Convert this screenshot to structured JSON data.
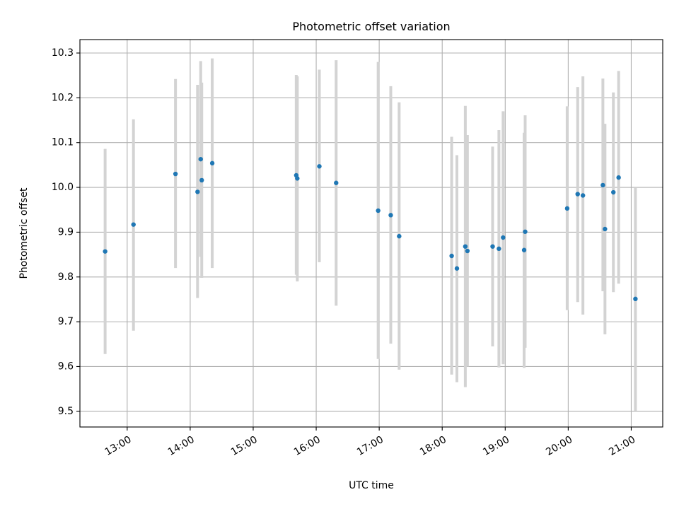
{
  "chart_data": {
    "type": "scatter",
    "title": "Photometric offset variation",
    "xlabel": "UTC time",
    "ylabel": "Photometric offset",
    "x_ticks": [
      "13:00",
      "14:00",
      "15:00",
      "16:00",
      "17:00",
      "18:00",
      "19:00",
      "20:00",
      "21:00"
    ],
    "y_ticks": [
      "9.5",
      "9.6",
      "9.7",
      "9.8",
      "9.9",
      "10.0",
      "10.1",
      "10.2",
      "10.3"
    ],
    "xlim": [
      "12:15",
      "21:30"
    ],
    "ylim": [
      9.465,
      10.33
    ],
    "grid": true,
    "points": [
      {
        "x": "12:39",
        "y": 9.857,
        "low": 9.628,
        "high": 10.086
      },
      {
        "x": "13:06",
        "y": 9.917,
        "low": 9.68,
        "high": 10.152
      },
      {
        "x": "13:46",
        "y": 10.03,
        "low": 9.82,
        "high": 10.242
      },
      {
        "x": "14:07",
        "y": 9.99,
        "low": 9.753,
        "high": 10.229
      },
      {
        "x": "14:10",
        "y": 10.063,
        "low": 9.845,
        "high": 10.282
      },
      {
        "x": "14:11",
        "y": 10.016,
        "low": 9.798,
        "high": 10.234
      },
      {
        "x": "14:21",
        "y": 10.054,
        "low": 9.82,
        "high": 10.288
      },
      {
        "x": "15:41",
        "y": 10.027,
        "low": 9.805,
        "high": 10.251
      },
      {
        "x": "15:42",
        "y": 10.02,
        "low": 9.79,
        "high": 10.248
      },
      {
        "x": "16:03",
        "y": 10.047,
        "low": 9.833,
        "high": 10.263
      },
      {
        "x": "16:19",
        "y": 10.01,
        "low": 9.736,
        "high": 10.284
      },
      {
        "x": "16:59",
        "y": 9.948,
        "low": 9.617,
        "high": 10.28
      },
      {
        "x": "17:11",
        "y": 9.938,
        "low": 9.651,
        "high": 10.226
      },
      {
        "x": "17:19",
        "y": 9.891,
        "low": 9.593,
        "high": 10.19
      },
      {
        "x": "18:09",
        "y": 9.847,
        "low": 9.582,
        "high": 10.113
      },
      {
        "x": "18:14",
        "y": 9.819,
        "low": 9.565,
        "high": 10.072
      },
      {
        "x": "18:22",
        "y": 9.868,
        "low": 9.554,
        "high": 10.182
      },
      {
        "x": "18:24",
        "y": 9.858,
        "low": 9.6,
        "high": 10.117
      },
      {
        "x": "18:48",
        "y": 9.868,
        "low": 9.645,
        "high": 10.091
      },
      {
        "x": "18:54",
        "y": 9.863,
        "low": 9.598,
        "high": 10.128
      },
      {
        "x": "18:58",
        "y": 9.888,
        "low": 9.605,
        "high": 10.17
      },
      {
        "x": "19:18",
        "y": 9.86,
        "low": 9.597,
        "high": 10.122
      },
      {
        "x": "19:19",
        "y": 9.901,
        "low": 9.642,
        "high": 10.161
      },
      {
        "x": "19:59",
        "y": 9.953,
        "low": 9.726,
        "high": 10.181
      },
      {
        "x": "20:09",
        "y": 9.985,
        "low": 9.744,
        "high": 10.224
      },
      {
        "x": "20:14",
        "y": 9.982,
        "low": 9.716,
        "high": 10.248
      },
      {
        "x": "20:33",
        "y": 10.005,
        "low": 9.768,
        "high": 10.243
      },
      {
        "x": "20:35",
        "y": 9.907,
        "low": 9.672,
        "high": 10.142
      },
      {
        "x": "20:43",
        "y": 9.989,
        "low": 9.766,
        "high": 10.212
      },
      {
        "x": "20:48",
        "y": 10.022,
        "low": 9.785,
        "high": 10.26
      },
      {
        "x": "21:04",
        "y": 9.751,
        "low": 9.501,
        "high": 10.0
      }
    ],
    "colors": {
      "point": "#1f77b4",
      "errorbar": "#d3d3d3",
      "grid": "#b0b0b0"
    }
  }
}
